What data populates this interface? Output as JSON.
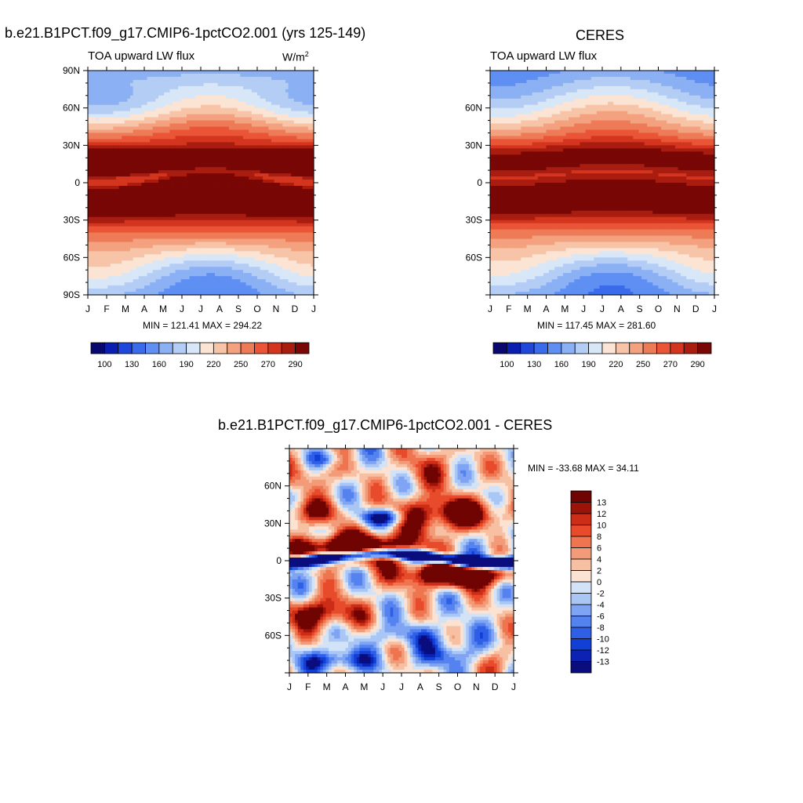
{
  "panels": {
    "model": {
      "title": "b.e21.B1PCT.f09_g17.CMIP6-1pctCO2.001 (yrs 125-149)",
      "subtitle": "TOA upward LW flux",
      "units_base": "W/m",
      "units_exp": "2",
      "stats": "MIN = 121.41 MAX = 294.22"
    },
    "obs": {
      "title": "CERES",
      "subtitle": "TOA upward LW flux",
      "stats": "MIN = 117.45 MAX = 281.60"
    },
    "diff": {
      "title": "b.e21.B1PCT.f09_g17.CMIP6-1pctCO2.001 - CERES",
      "stats": "MIN = -33.68 MAX =  34.11"
    }
  },
  "chart_data": [
    {
      "id": "model",
      "type": "heatmap",
      "title": "b.e21.B1PCT.f09_g17.CMIP6-1pctCO2.001 (yrs 125-149)",
      "subtitle": "TOA upward LW flux",
      "units": "W/m2",
      "x": [
        "J",
        "F",
        "M",
        "A",
        "M",
        "J",
        "J",
        "A",
        "S",
        "O",
        "N",
        "D",
        "J"
      ],
      "y_ticks": [
        "90N",
        "60N",
        "30N",
        "0",
        "30S",
        "60S",
        "90S"
      ],
      "y_tick_values": [
        90,
        60,
        30,
        0,
        -30,
        -60,
        -90
      ],
      "ylim": [
        -90,
        90
      ],
      "min": 121.41,
      "max": 294.22,
      "levels": [
        100,
        110,
        120,
        130,
        140,
        150,
        160,
        170,
        180,
        190,
        200,
        210,
        220,
        230,
        240,
        250,
        260,
        270,
        280,
        290
      ],
      "colorbar_labels": [
        "100",
        "130",
        "160",
        "190",
        "220",
        "250",
        "270",
        "290"
      ]
    },
    {
      "id": "obs",
      "type": "heatmap",
      "title": "CERES",
      "subtitle": "TOA upward LW flux",
      "x": [
        "J",
        "F",
        "M",
        "A",
        "M",
        "J",
        "J",
        "A",
        "S",
        "O",
        "N",
        "D",
        "J"
      ],
      "y_ticks": [
        "60N",
        "30N",
        "0",
        "30S",
        "60S"
      ],
      "y_tick_values": [
        60,
        30,
        0,
        -30,
        -60
      ],
      "ylim": [
        -90,
        90
      ],
      "min": 117.45,
      "max": 281.6,
      "levels": [
        100,
        110,
        120,
        130,
        140,
        150,
        160,
        170,
        180,
        190,
        200,
        210,
        220,
        230,
        240,
        250,
        260,
        270,
        280,
        290
      ],
      "colorbar_labels": [
        "100",
        "130",
        "160",
        "190",
        "220",
        "250",
        "270",
        "290"
      ]
    },
    {
      "id": "diff",
      "type": "heatmap",
      "title": "b.e21.B1PCT.f09_g17.CMIP6-1pctCO2.001 - CERES",
      "x": [
        "J",
        "F",
        "M",
        "A",
        "M",
        "J",
        "J",
        "A",
        "S",
        "O",
        "N",
        "D",
        "J"
      ],
      "y_ticks": [
        "60N",
        "30N",
        "0",
        "30S",
        "60S"
      ],
      "y_tick_values": [
        60,
        30,
        0,
        -30,
        -60
      ],
      "ylim": [
        -90,
        90
      ],
      "min": -33.68,
      "max": 34.11,
      "levels": [
        -13,
        -12,
        -10,
        -8,
        -6,
        -4,
        -2,
        0,
        2,
        4,
        6,
        8,
        10,
        12,
        13
      ],
      "colorbar_labels": [
        "13",
        "12",
        "10",
        "8",
        "6",
        "4",
        "2",
        "0",
        "-2",
        "-4",
        "-6",
        "-8",
        "-10",
        "-12",
        "-13"
      ]
    }
  ],
  "colors": {
    "abs_scale": [
      "#08086e",
      "#0a1fb0",
      "#1f47dc",
      "#3a6bea",
      "#5f8ff2",
      "#8bb0f4",
      "#b4cdf5",
      "#d8e7f7",
      "#fbe4d4",
      "#f7c4a8",
      "#f3a17e",
      "#ee7b57",
      "#e95536",
      "#d3351f",
      "#a91c10",
      "#780705"
    ],
    "diff_scale": [
      "#0a0d7e",
      "#0b22b2",
      "#1140d7",
      "#2e5fe6",
      "#5482ef",
      "#7ea4f3",
      "#a9c6f5",
      "#d2e3f7",
      "#fbe2d2",
      "#f7c0a3",
      "#f39b78",
      "#ee754f",
      "#e84b2b",
      "#cc2d17",
      "#9c130a",
      "#700403"
    ]
  }
}
